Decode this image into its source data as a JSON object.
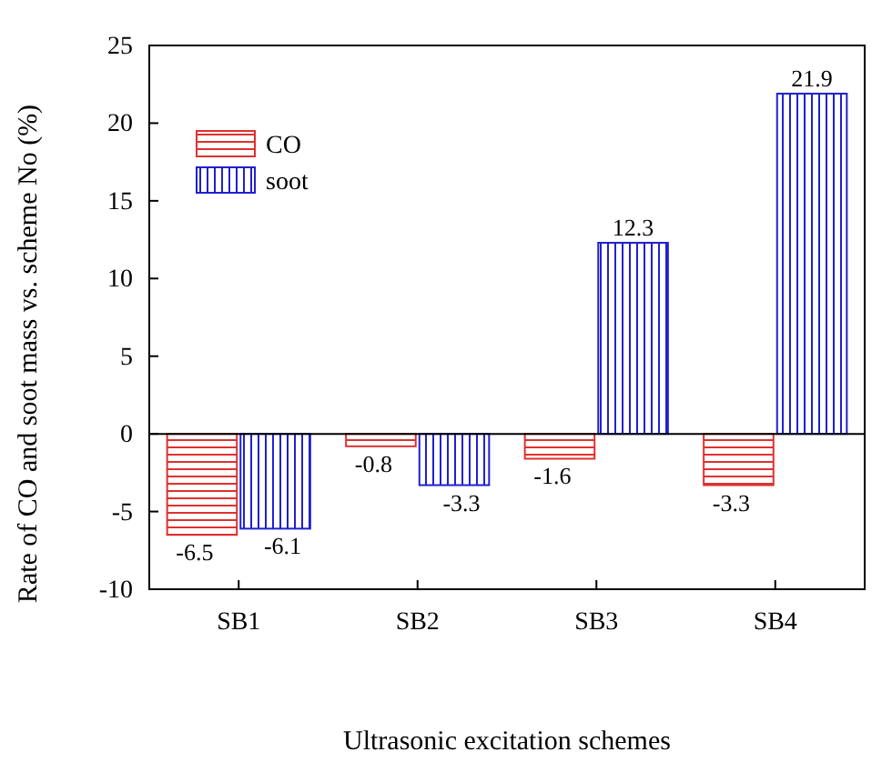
{
  "chart_data": {
    "type": "bar",
    "xlabel": "Ultrasonic excitation schemes",
    "ylabel": "Rate of CO and soot mass vs. scheme No (%)",
    "categories": [
      "SB1",
      "SB2",
      "SB3",
      "SB4"
    ],
    "series": [
      {
        "name": "CO",
        "color": "#e03030",
        "values": [
          -6.5,
          -0.8,
          -1.6,
          -3.3
        ]
      },
      {
        "name": "soot",
        "color": "#2020d0",
        "values": [
          -6.1,
          -3.3,
          12.3,
          21.9
        ]
      }
    ],
    "ylim": [
      -10,
      25
    ],
    "yticks": [
      -10,
      -5,
      0,
      5,
      10,
      15,
      20,
      25
    ],
    "ref_lines": [
      {
        "axis": "y",
        "value": 0,
        "color": "#000000"
      }
    ],
    "legend": "top left",
    "data_labels": true
  }
}
